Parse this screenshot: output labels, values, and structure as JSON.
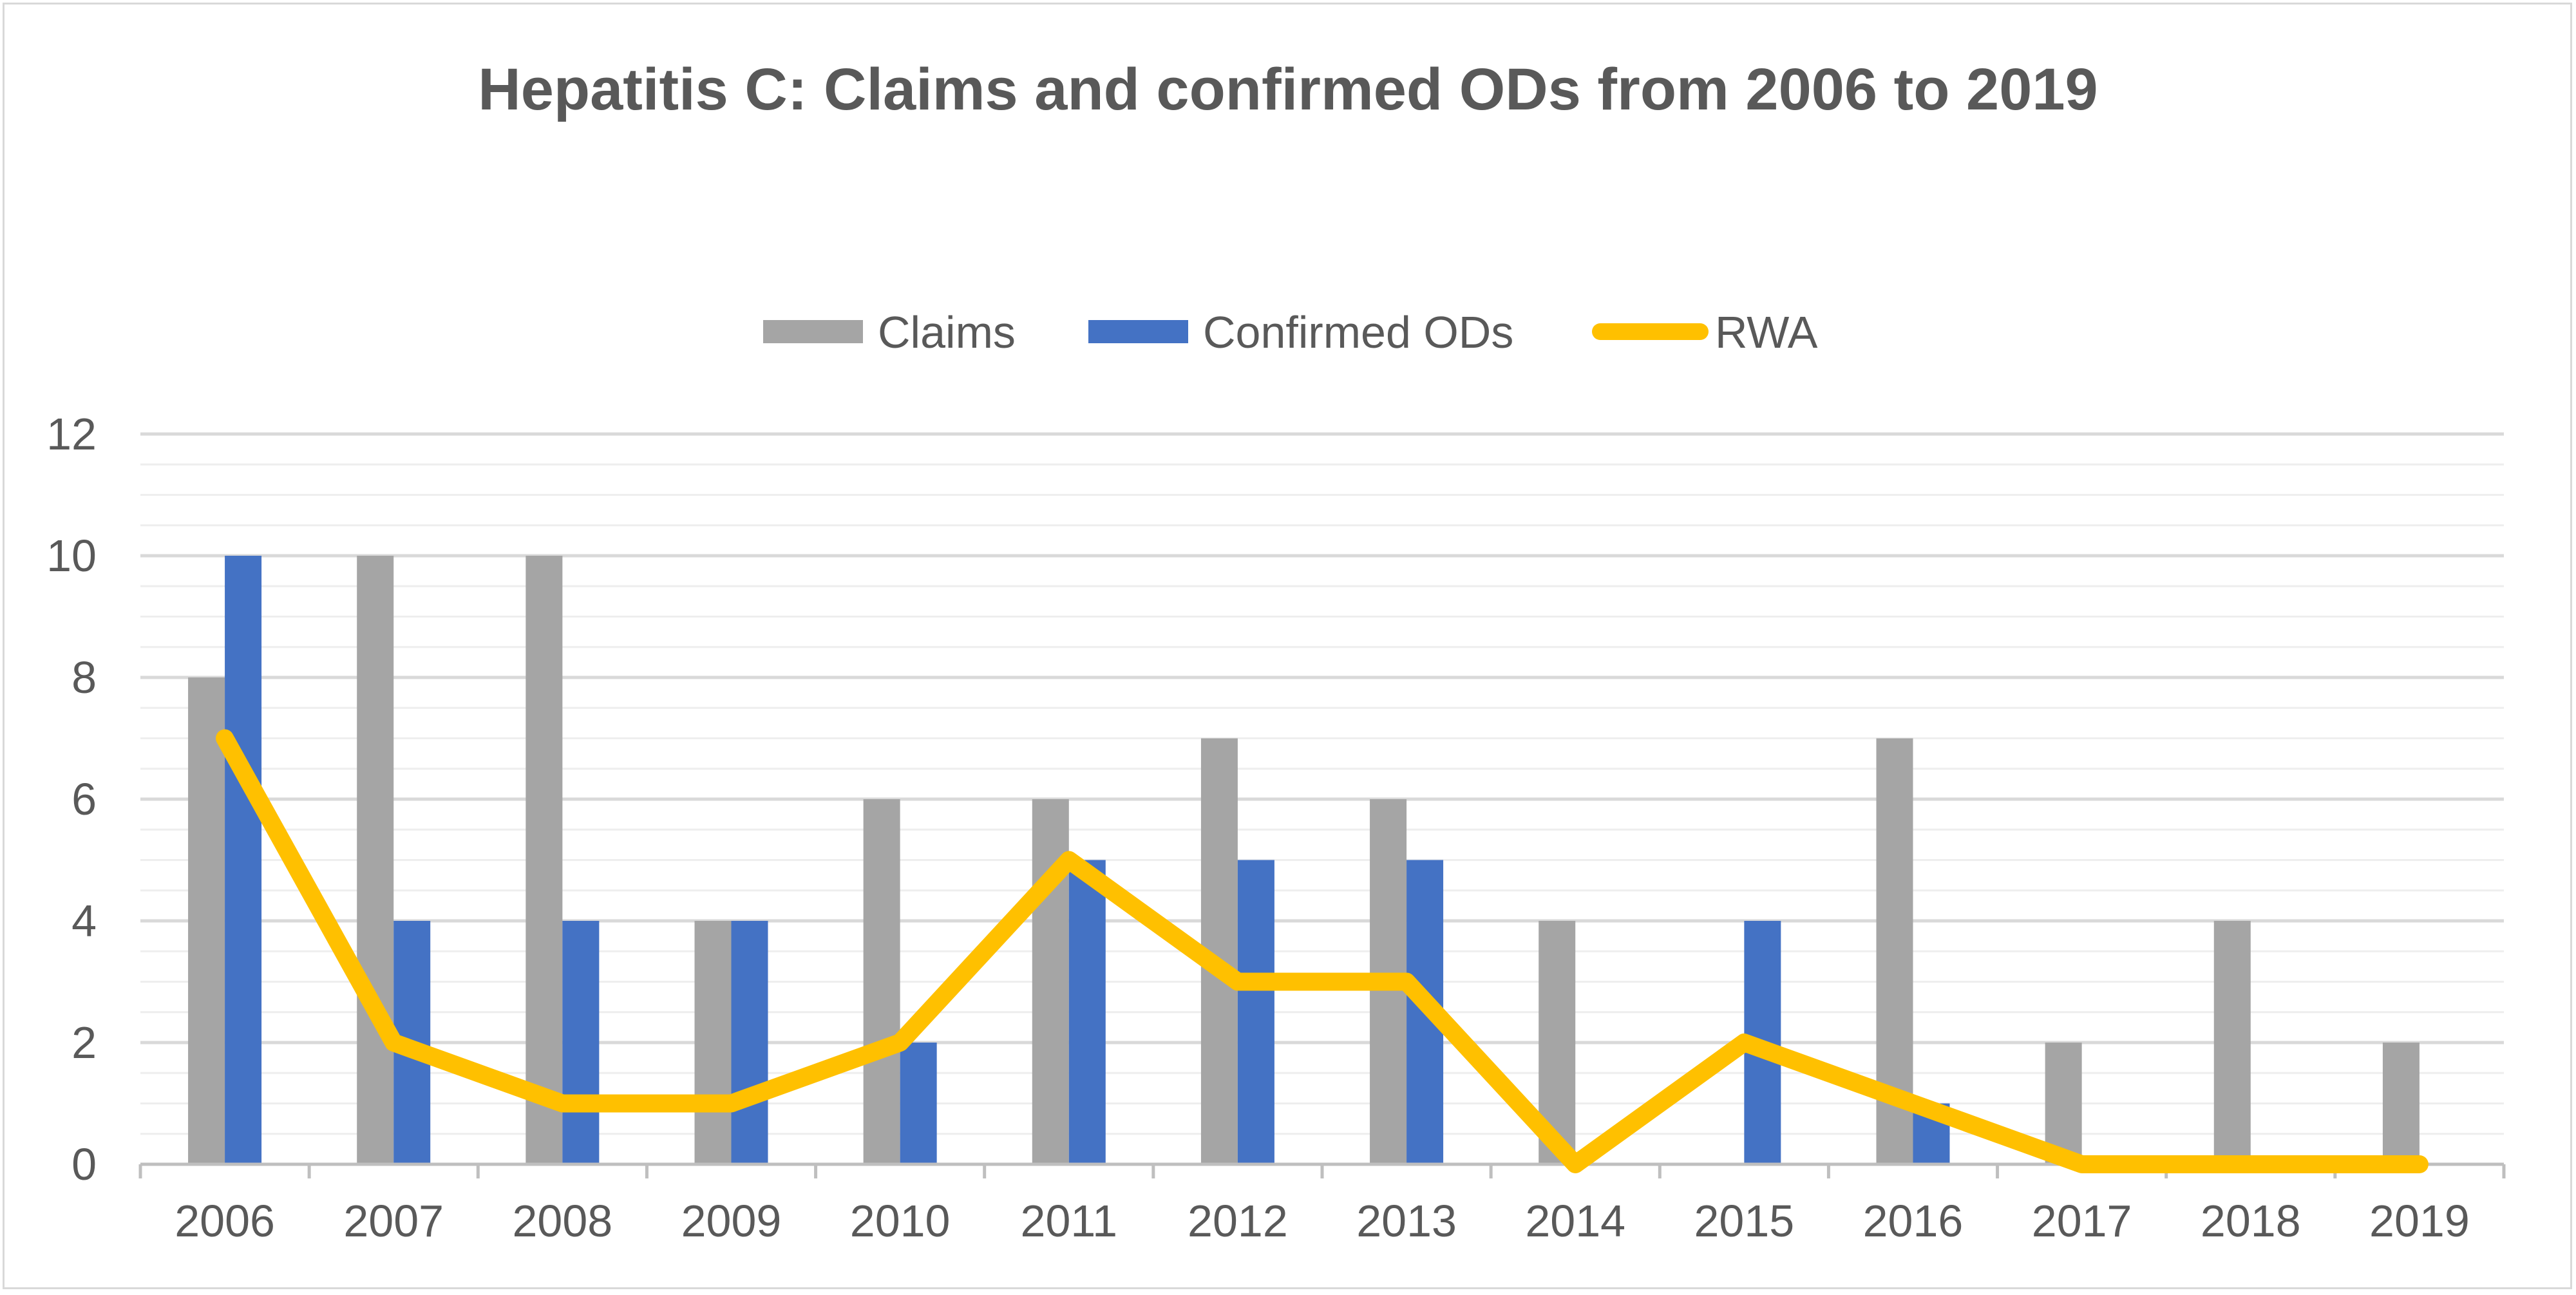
{
  "chart_data": {
    "type": "bar",
    "title": "Hepatitis C: Claims and confirmed ODs from 2006 to 2019",
    "xlabel": "",
    "ylabel": "",
    "categories": [
      "2006",
      "2007",
      "2008",
      "2009",
      "2010",
      "2011",
      "2012",
      "2013",
      "2014",
      "2015",
      "2016",
      "2017",
      "2018",
      "2019"
    ],
    "ylim": [
      0,
      12
    ],
    "yticks": [
      "0",
      "2",
      "4",
      "6",
      "8",
      "10",
      "12"
    ],
    "grid": true,
    "legend_position": "top-center",
    "series": [
      {
        "name": "Claims",
        "type": "bar",
        "color": "#a5a5a5",
        "values": [
          8,
          10,
          10,
          4,
          6,
          6,
          7,
          6,
          4,
          0,
          7,
          2,
          4,
          2
        ]
      },
      {
        "name": "Confirmed ODs",
        "type": "bar",
        "color": "#4472c4",
        "values": [
          10,
          4,
          4,
          4,
          2,
          5,
          5,
          5,
          0,
          4,
          1,
          0,
          0,
          0
        ]
      },
      {
        "name": "RWA",
        "type": "line",
        "color": "#ffc000",
        "values": [
          7,
          2,
          1,
          1,
          2,
          5,
          3,
          3,
          0,
          2,
          1,
          0,
          0,
          0
        ]
      }
    ]
  },
  "colors": {
    "grid_major": "#d9d9d9",
    "grid_minor": "#eeeeee",
    "axis": "#bfbfbf",
    "text": "#595959"
  }
}
